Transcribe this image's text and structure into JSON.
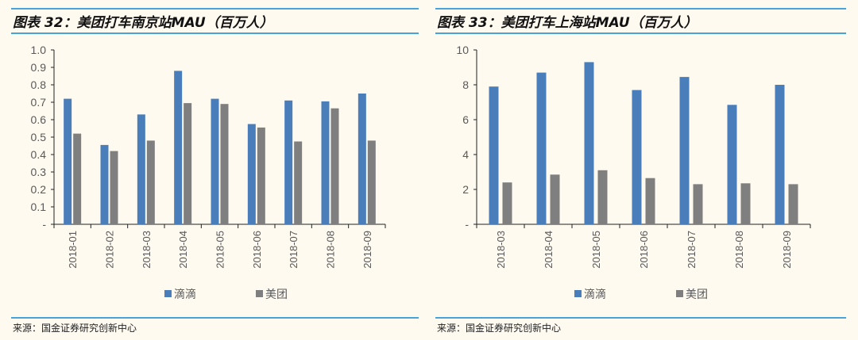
{
  "charts": [
    {
      "title": "图表 32：美团打车南京站MAU（百万人）",
      "source": "来源：国金证券研究创新中心"
    },
    {
      "title": "图表 33：美团打车上海站MAU（百万人）",
      "source": "来源：国金证券研究创新中心"
    }
  ],
  "colors": {
    "didi": "#4a7ebb",
    "meituan": "#7f7f7f",
    "rule": "#4aa3d8"
  },
  "chart_data": [
    {
      "type": "bar",
      "title": "图表 32：美团打车南京站MAU（百万人）",
      "categories": [
        "2018-01",
        "2018-02",
        "2018-03",
        "2018-04",
        "2018-05",
        "2018-06",
        "2018-07",
        "2018-08",
        "2018-09"
      ],
      "series": [
        {
          "name": "滴滴",
          "values": [
            0.72,
            0.455,
            0.63,
            0.88,
            0.72,
            0.575,
            0.71,
            0.705,
            0.75
          ]
        },
        {
          "name": "美团",
          "values": [
            0.52,
            0.42,
            0.48,
            0.695,
            0.69,
            0.555,
            0.475,
            0.665,
            0.48
          ]
        }
      ],
      "yticks": [
        "-",
        "0.1",
        "0.2",
        "0.3",
        "0.4",
        "0.5",
        "0.6",
        "0.7",
        "0.8",
        "0.9",
        "1.0"
      ],
      "ylim": [
        0,
        1.0
      ],
      "grid": false,
      "legend": "bottom"
    },
    {
      "type": "bar",
      "title": "图表 33：美团打车上海站MAU（百万人）",
      "categories": [
        "2018-03",
        "2018-04",
        "2018-05",
        "2018-06",
        "2018-07",
        "2018-08",
        "2018-09"
      ],
      "series": [
        {
          "name": "滴滴",
          "values": [
            7.9,
            8.7,
            9.3,
            7.7,
            8.45,
            6.85,
            8.0
          ]
        },
        {
          "name": "美团",
          "values": [
            2.4,
            2.85,
            3.1,
            2.65,
            2.3,
            2.35,
            2.3
          ]
        }
      ],
      "yticks": [
        "-",
        "2",
        "4",
        "6",
        "8",
        "10"
      ],
      "ylim": [
        0,
        10
      ],
      "grid": false,
      "legend": "bottom"
    }
  ]
}
